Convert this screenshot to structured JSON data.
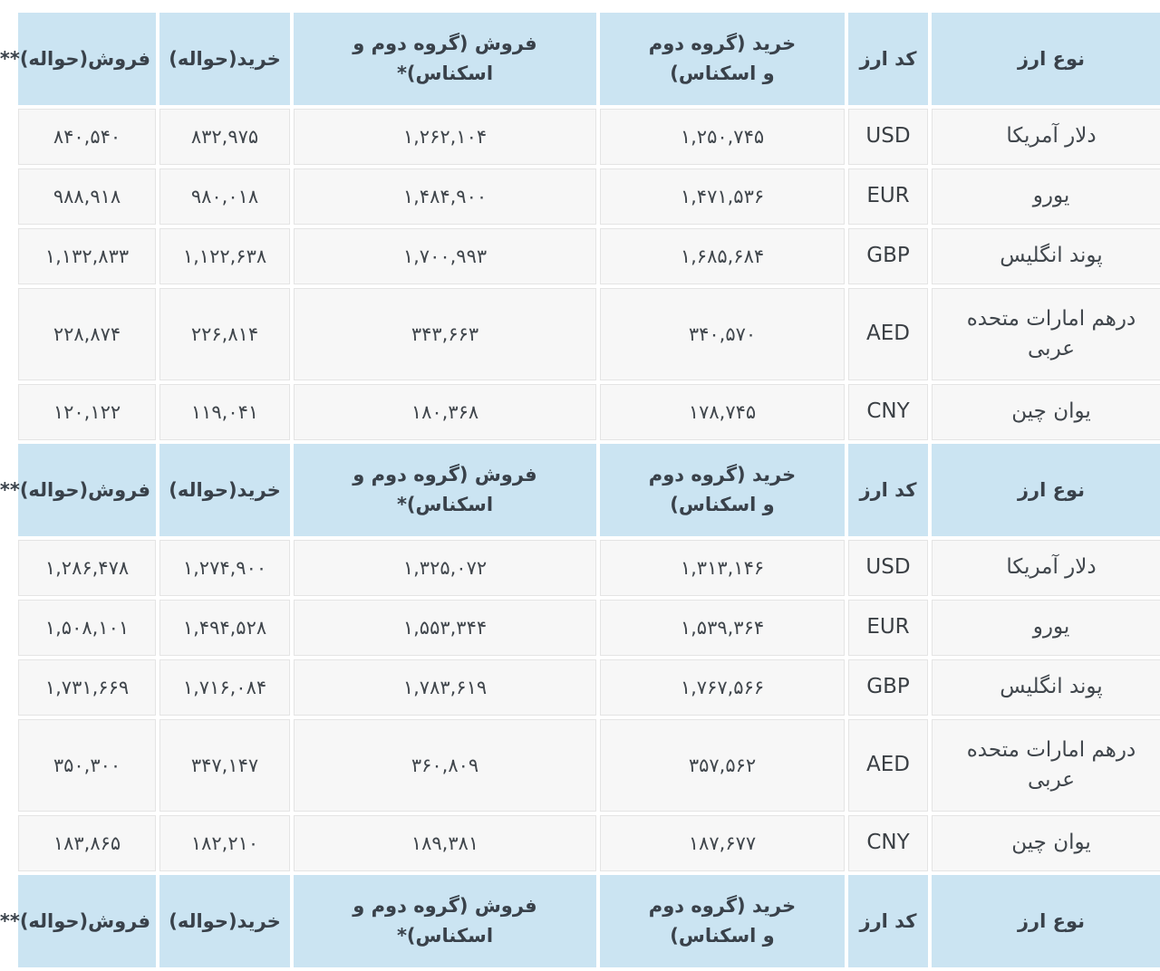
{
  "colors": {
    "header_bg": "#cbe4f2",
    "row_bg": "#f7f7f7",
    "cell_border": "#e4e4e4",
    "text": "#40464c"
  },
  "columns": {
    "name": {
      "label": "نوع ارز"
    },
    "code": {
      "label": "کد ارز"
    },
    "buy_cash": {
      "label": "خرید (گروه دوم و اسکناس)"
    },
    "sell_cash": {
      "label": "فروش (گروه دوم و اسکناس)*"
    },
    "buy_remit": {
      "label": "خرید(حواله)"
    },
    "sell_remit": {
      "label": "فروش(حواله)**"
    }
  },
  "table1": {
    "rows": [
      {
        "name": "دلار آمریکا",
        "code": "USD",
        "buy_cash": "۱,۲۵۰,۷۴۵",
        "sell_cash": "۱,۲۶۲,۱۰۴",
        "buy_remit": "۸۳۲,۹۷۵",
        "sell_remit": "۸۴۰,۵۴۰"
      },
      {
        "name": "یورو",
        "code": "EUR",
        "buy_cash": "۱,۴۷۱,۵۳۶",
        "sell_cash": "۱,۴۸۴,۹۰۰",
        "buy_remit": "۹۸۰,۰۱۸",
        "sell_remit": "۹۸۸,۹۱۸"
      },
      {
        "name": "پوند انگلیس",
        "code": "GBP",
        "buy_cash": "۱,۶۸۵,۶۸۴",
        "sell_cash": "۱,۷۰۰,۹۹۳",
        "buy_remit": "۱,۱۲۲,۶۳۸",
        "sell_remit": "۱,۱۳۲,۸۳۳"
      },
      {
        "name": "درهم امارات متحده عربی",
        "code": "AED",
        "buy_cash": "۳۴۰,۵۷۰",
        "sell_cash": "۳۴۳,۶۶۳",
        "buy_remit": "۲۲۶,۸۱۴",
        "sell_remit": "۲۲۸,۸۷۴"
      },
      {
        "name": "یوان چین",
        "code": "CNY",
        "buy_cash": "۱۷۸,۷۴۵",
        "sell_cash": "۱۸۰,۳۶۸",
        "buy_remit": "۱۱۹,۰۴۱",
        "sell_remit": "۱۲۰,۱۲۲"
      }
    ]
  },
  "table2": {
    "rows": [
      {
        "name": "دلار آمریکا",
        "code": "USD",
        "buy_cash": "۱,۳۱۳,۱۴۶",
        "sell_cash": "۱,۳۲۵,۰۷۲",
        "buy_remit": "۱,۲۷۴,۹۰۰",
        "sell_remit": "۱,۲۸۶,۴۷۸"
      },
      {
        "name": "یورو",
        "code": "EUR",
        "buy_cash": "۱,۵۳۹,۳۶۴",
        "sell_cash": "۱,۵۵۳,۳۴۴",
        "buy_remit": "۱,۴۹۴,۵۲۸",
        "sell_remit": "۱,۵۰۸,۱۰۱"
      },
      {
        "name": "پوند انگلیس",
        "code": "GBP",
        "buy_cash": "۱,۷۶۷,۵۶۶",
        "sell_cash": "۱,۷۸۳,۶۱۹",
        "buy_remit": "۱,۷۱۶,۰۸۴",
        "sell_remit": "۱,۷۳۱,۶۶۹"
      },
      {
        "name": "درهم امارات متحده عربی",
        "code": "AED",
        "buy_cash": "۳۵۷,۵۶۲",
        "sell_cash": "۳۶۰,۸۰۹",
        "buy_remit": "۳۴۷,۱۴۷",
        "sell_remit": "۳۵۰,۳۰۰"
      },
      {
        "name": "یوان چین",
        "code": "CNY",
        "buy_cash": "۱۸۷,۶۷۷",
        "sell_cash": "۱۸۹,۳۸۱",
        "buy_remit": "۱۸۲,۲۱۰",
        "sell_remit": "۱۸۳,۸۶۵"
      }
    ]
  }
}
